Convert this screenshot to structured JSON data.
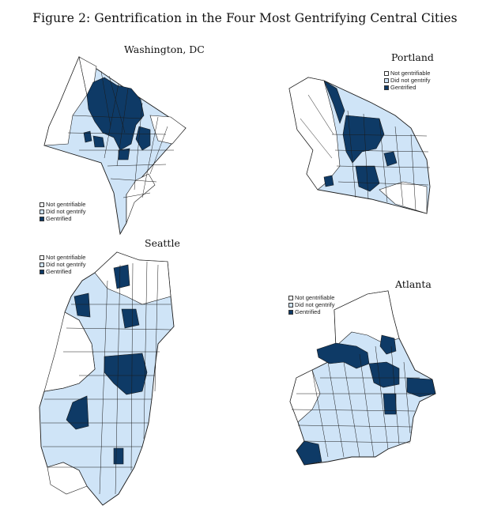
{
  "figure_title": "Figure 2: Gentrification in the Four Most Gentrifying Central Cities",
  "colors": {
    "not_gentrifiable": "#ffffff",
    "did_not_gentrify": "#cfe4f7",
    "gentrified": "#0e3a66",
    "boundary": "#1a1a1a"
  },
  "legend_labels": {
    "not_gentrifiable": "Not gentrifiable",
    "did_not_gentrify": "Did not gentrify",
    "gentrified": "Gentrified"
  },
  "maps": [
    {
      "id": "washington",
      "name": "Washington, DC"
    },
    {
      "id": "portland",
      "name": "Portland"
    },
    {
      "id": "seattle",
      "name": "Seattle"
    },
    {
      "id": "atlanta",
      "name": "Atlanta"
    }
  ]
}
